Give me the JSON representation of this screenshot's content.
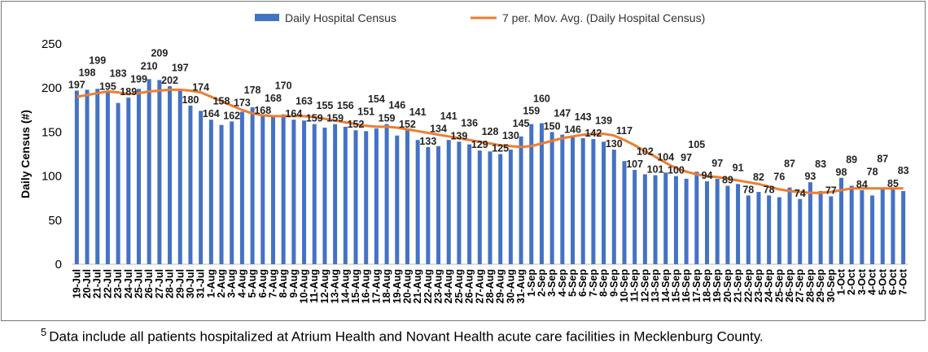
{
  "chart_data": {
    "type": "bar",
    "title": "",
    "xlabel": "",
    "ylabel": "Daily Census (#)",
    "ylim": [
      0,
      250
    ],
    "yticks": [
      0,
      50,
      100,
      150,
      200,
      250
    ],
    "grid": false,
    "legend_placement": "top",
    "categories": [
      "19-Jul",
      "20-Jul",
      "21-Jul",
      "22-Jul",
      "23-Jul",
      "24-Jul",
      "25-Jul",
      "26-Jul",
      "27-Jul",
      "28-Jul",
      "29-Jul",
      "30-Jul",
      "31-Jul",
      "1-Aug",
      "2-Aug",
      "3-Aug",
      "4-Aug",
      "5-Aug",
      "6-Aug",
      "7-Aug",
      "8-Aug",
      "9-Aug",
      "10-Aug",
      "11-Aug",
      "12-Aug",
      "13-Aug",
      "14-Aug",
      "15-Aug",
      "16-Aug",
      "17-Aug",
      "18-Aug",
      "19-Aug",
      "20-Aug",
      "21-Aug",
      "22-Aug",
      "23-Aug",
      "24-Aug",
      "25-Aug",
      "26-Aug",
      "27-Aug",
      "28-Aug",
      "29-Aug",
      "30-Aug",
      "31-Aug",
      "1-Sep",
      "2-Sep",
      "3-Sep",
      "4-Sep",
      "5-Sep",
      "6-Sep",
      "7-Sep",
      "8-Sep",
      "9-Sep",
      "10-Sep",
      "11-Sep",
      "12-Sep",
      "13-Sep",
      "14-Sep",
      "15-Sep",
      "16-Sep",
      "17-Sep",
      "18-Sep",
      "19-Sep",
      "20-Sep",
      "21-Sep",
      "22-Sep",
      "23-Sep",
      "24-Sep",
      "25-Sep",
      "26-Sep",
      "27-Sep",
      "28-Sep",
      "29-Sep",
      "30-Sep",
      "1-Oct",
      "2-Oct",
      "3-Oct",
      "4-Oct",
      "5-Oct",
      "6-Oct",
      "7-Oct"
    ],
    "series": [
      {
        "name": "Daily Hospital Census",
        "type": "bar",
        "color": "#4472C4",
        "values": [
          197,
          198,
          199,
          195,
          183,
          189,
          199,
          210,
          209,
          202,
          197,
          180,
          174,
          164,
          158,
          162,
          173,
          178,
          168,
          168,
          170,
          164,
          163,
          159,
          155,
          159,
          156,
          152,
          151,
          154,
          159,
          146,
          152,
          141,
          133,
          134,
          141,
          139,
          136,
          129,
          128,
          125,
          130,
          145,
          159,
          160,
          150,
          147,
          146,
          143,
          142,
          139,
          130,
          117,
          107,
          102,
          101,
          104,
          100,
          97,
          105,
          94,
          97,
          89,
          91,
          78,
          82,
          78,
          76,
          87,
          74,
          93,
          83,
          77,
          98,
          89,
          84,
          78,
          87,
          85,
          83
        ]
      },
      {
        "name": "7 per. Mov. Avg. (Daily Hospital Census)",
        "type": "line",
        "color": "#ED7D31",
        "values": [
          190,
          192,
          194,
          196,
          195,
          193,
          194,
          196,
          197,
          198,
          198,
          197,
          195,
          190,
          185,
          180,
          175,
          171,
          169,
          168,
          168,
          168,
          168,
          167,
          165,
          163,
          161,
          159,
          157,
          156,
          156,
          155,
          153,
          151,
          149,
          147,
          145,
          143,
          141,
          139,
          137,
          135,
          134,
          133,
          134,
          137,
          140,
          143,
          145,
          147,
          148,
          148,
          146,
          141,
          135,
          128,
          122,
          115,
          109,
          105,
          102,
          100,
          99,
          97,
          95,
          93,
          91,
          88,
          85,
          83,
          82,
          81,
          81,
          82,
          84,
          86,
          86,
          86,
          86,
          86,
          86
        ]
      }
    ]
  },
  "footnote": {
    "marker": "5",
    "text": "Data include all patients hospitalized at Atrium Health and Novant Health acute care facilities in Mecklenburg County."
  }
}
